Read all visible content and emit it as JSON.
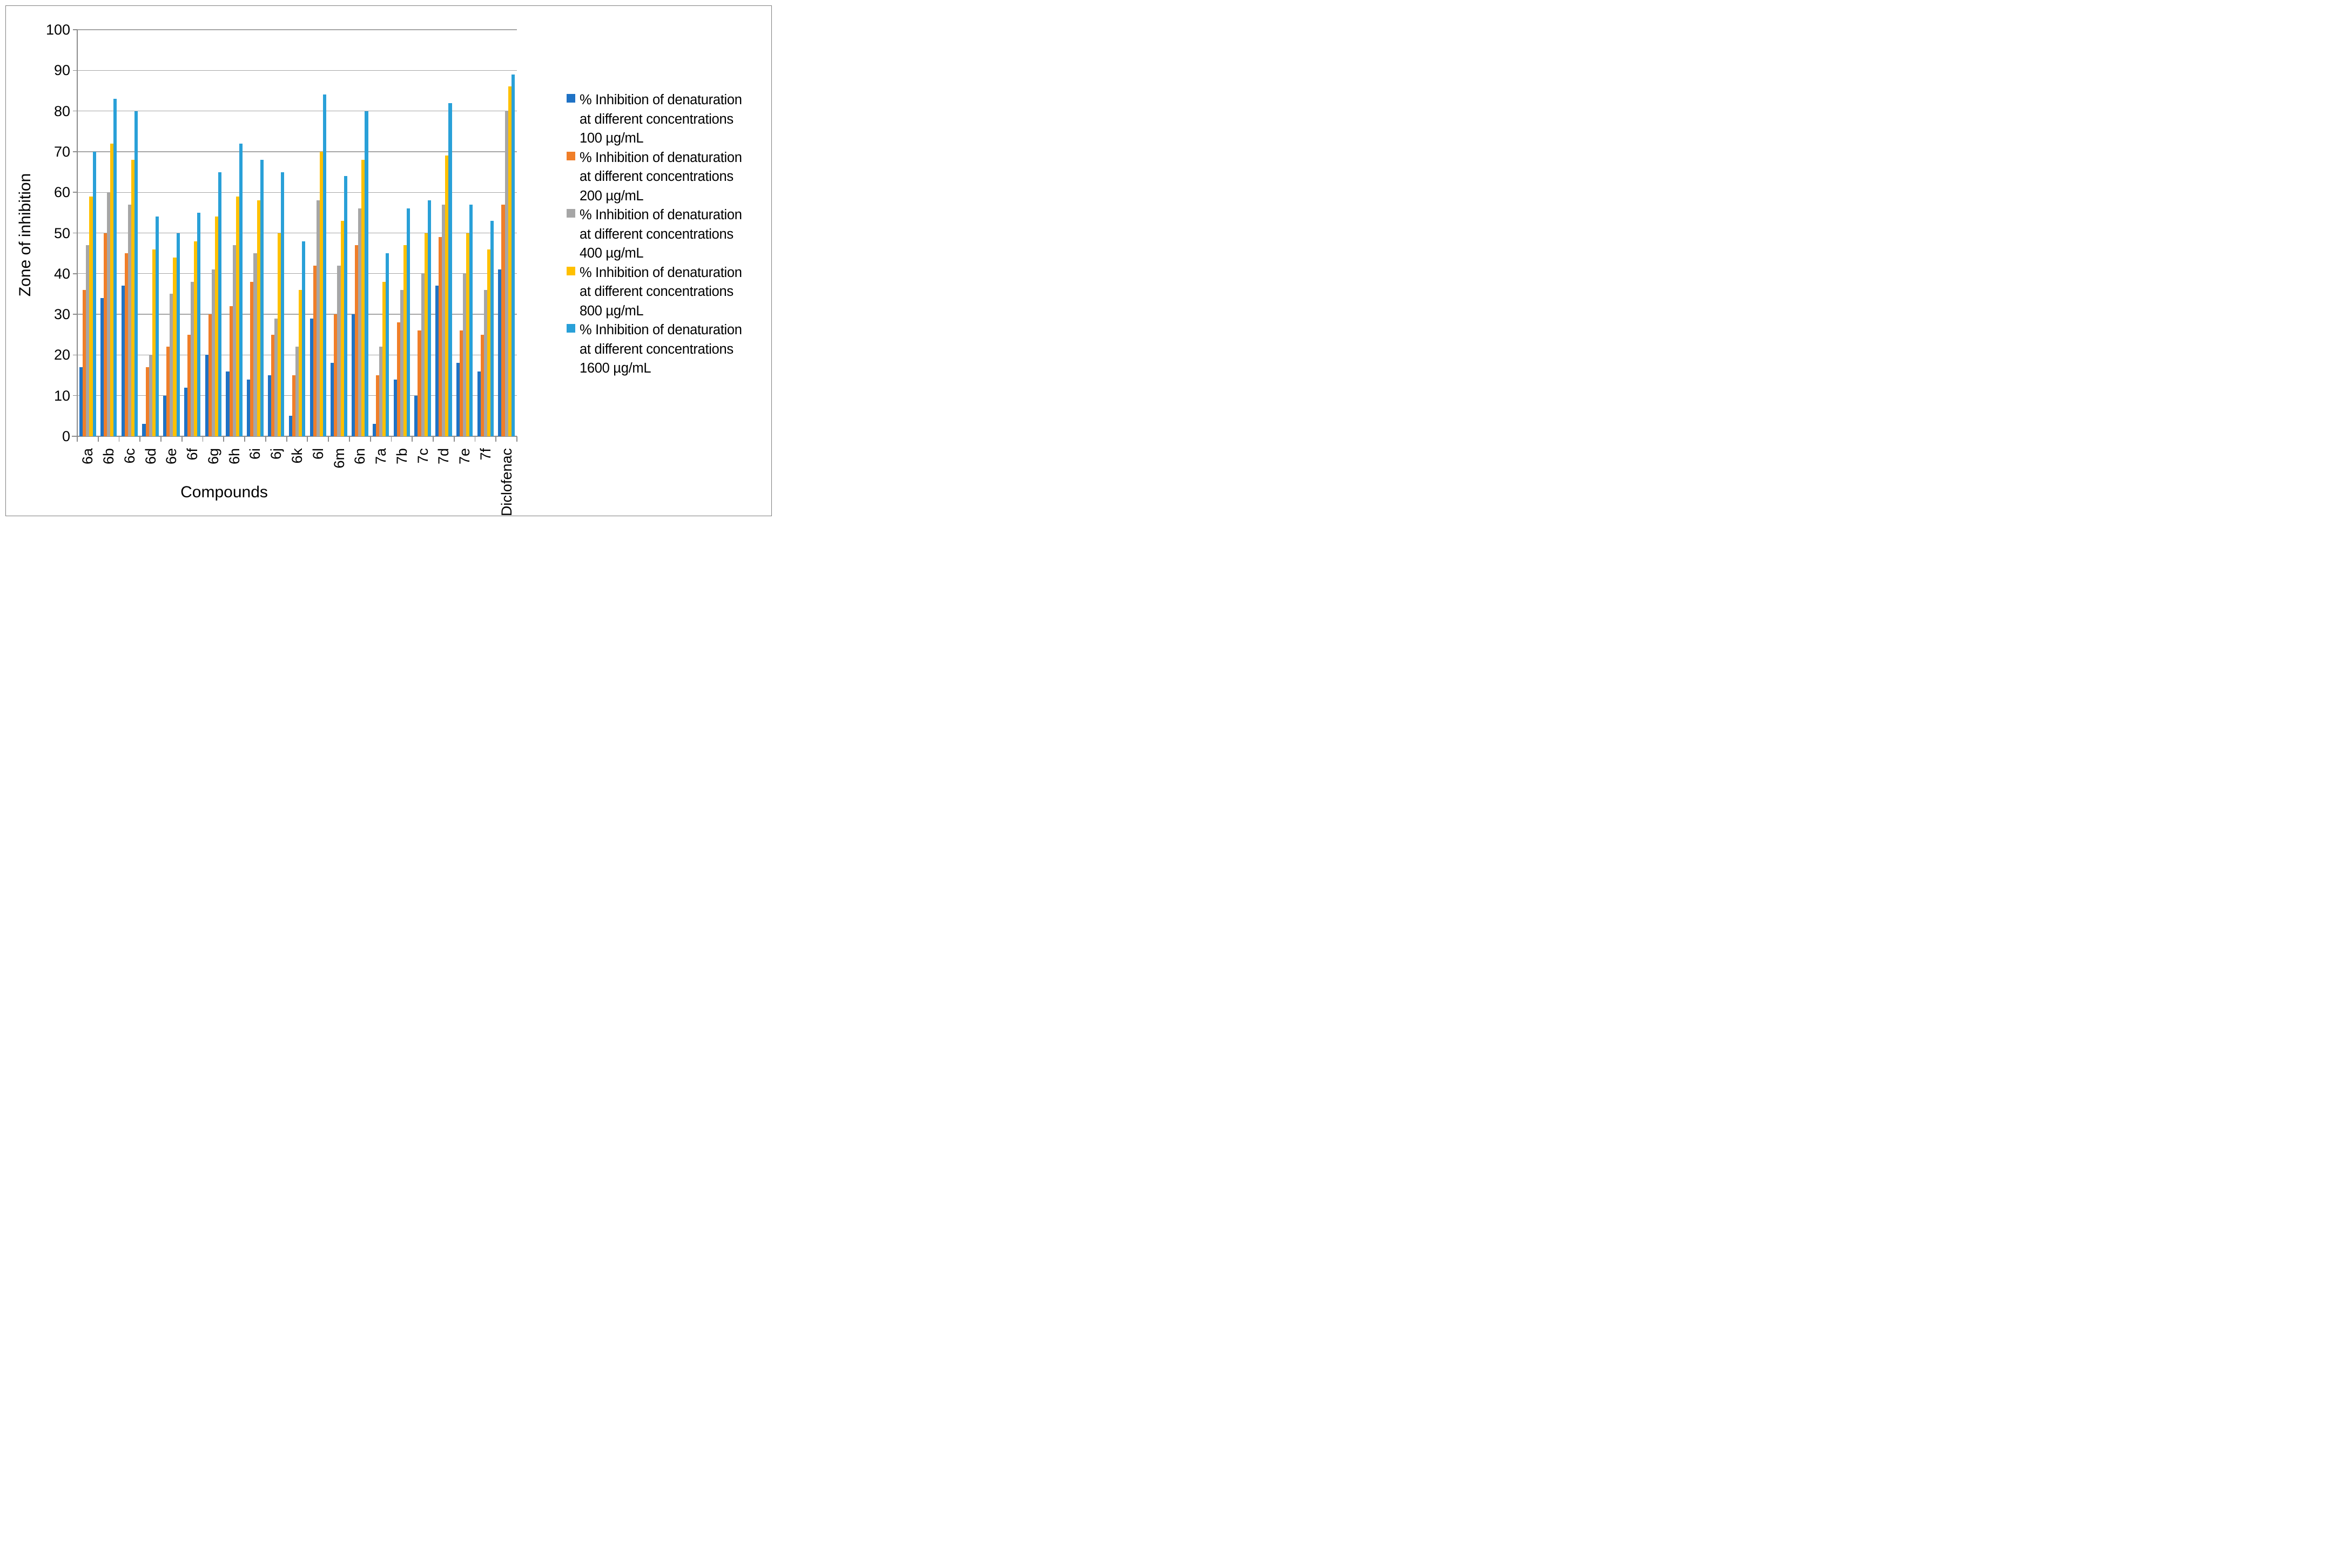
{
  "chart_data": {
    "type": "bar",
    "title": "",
    "xlabel": "Compounds",
    "ylabel": "Zone of inhibition",
    "ylim": [
      0,
      100
    ],
    "yticks": [
      0,
      10,
      20,
      30,
      40,
      50,
      60,
      70,
      80,
      90,
      100
    ],
    "grid": "horizontal",
    "legend_position": "right",
    "categories": [
      "6a",
      "6b",
      "6c",
      "6d",
      "6e",
      "6f",
      "6g",
      "6h",
      "6i",
      "6j",
      "6k",
      "6l",
      "6m",
      "6n",
      "7a",
      "7b",
      "7c",
      "7d",
      "7e",
      "7f",
      "Diclofenac"
    ],
    "series": [
      {
        "name": "% Inhibition of denaturation at different concentrations 100 µg/mL",
        "legend_lines": [
          "% Inhibition of denaturation",
          "at different concentrations",
          "100 µg/mL"
        ],
        "short": "100",
        "color": "#1f72c5",
        "values": [
          17,
          34,
          37,
          3,
          10,
          12,
          20,
          16,
          14,
          15,
          5,
          29,
          18,
          30,
          3,
          14,
          10,
          37,
          18,
          16,
          41
        ]
      },
      {
        "name": "% Inhibition of denaturation at different concentrations 200 µg/mL",
        "legend_lines": [
          "% Inhibition of denaturation",
          "at different concentrations",
          "200 µg/mL"
        ],
        "short": "200",
        "color": "#f07e28",
        "values": [
          36,
          50,
          45,
          17,
          22,
          25,
          30,
          32,
          38,
          25,
          15,
          42,
          30,
          47,
          15,
          28,
          26,
          49,
          26,
          25,
          57
        ]
      },
      {
        "name": "% Inhibition of denaturation at different concentrations 400 µg/mL",
        "legend_lines": [
          "% Inhibition of denaturation",
          "at different concentrations",
          "400 µg/mL"
        ],
        "short": "400",
        "color": "#a6a6a6",
        "values": [
          47,
          60,
          57,
          20,
          35,
          38,
          41,
          47,
          45,
          29,
          22,
          58,
          42,
          56,
          22,
          36,
          40,
          57,
          40,
          36,
          80
        ]
      },
      {
        "name": "% Inhibition of denaturation at different concentrations 800 µg/mL",
        "legend_lines": [
          "% Inhibition of denaturation",
          "at different concentrations",
          "800 µg/mL"
        ],
        "short": "800",
        "color": "#ffc000",
        "values": [
          59,
          72,
          68,
          46,
          44,
          48,
          54,
          59,
          58,
          50,
          36,
          70,
          53,
          68,
          38,
          47,
          50,
          69,
          50,
          46,
          86
        ]
      },
      {
        "name": "% Inhibition of denaturation at different concentrations 1600 µg/mL",
        "legend_lines": [
          "% Inhibition of denaturation",
          "at different concentrations",
          "1600 µg/mL"
        ],
        "short": "1600",
        "color": "#29a0d8",
        "values": [
          70,
          83,
          80,
          54,
          50,
          55,
          65,
          72,
          68,
          65,
          48,
          84,
          64,
          80,
          45,
          56,
          58,
          82,
          57,
          53,
          89
        ]
      }
    ]
  },
  "colors": {
    "gridline": "#a6a6a6",
    "axis": "#8c8c8c",
    "frame": "#7f7f7f",
    "text": "#000000"
  }
}
